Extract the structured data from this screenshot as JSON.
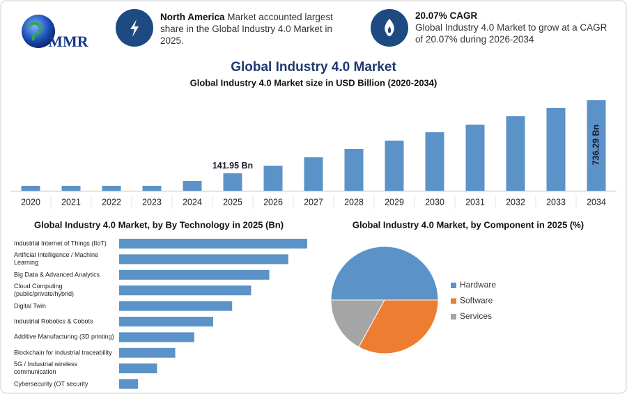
{
  "header": {
    "logo": "MMR",
    "highlights": [
      {
        "bold": "North America",
        "text": "Market accounted largest share in the Global Industry 4.0 Market in 2025."
      },
      {
        "bold": "20.07% CAGR",
        "text": "Global Industry 4.0 Market to grow at a CAGR of 20.07% during 2026-2034"
      }
    ]
  },
  "title": "Global Industry 4.0 Market",
  "chart_data": [
    {
      "type": "bar",
      "title": "Global Industry 4.0 Market size in USD Billion (2020-2034)",
      "categories": [
        "2020",
        "2021",
        "2022",
        "2023",
        "2024",
        "2025",
        "2026",
        "2027",
        "2028",
        "2029",
        "2030",
        "2031",
        "2032",
        "2033",
        "2034"
      ],
      "values": [
        40,
        40,
        40,
        40,
        79,
        141.95,
        204,
        272,
        340,
        408,
        476,
        538,
        606,
        674,
        736.29
      ],
      "value_labels": [
        null,
        null,
        null,
        null,
        null,
        "141.95 Bn",
        null,
        null,
        null,
        null,
        null,
        null,
        null,
        null,
        "736.29 Bn"
      ],
      "color": "#5b93c9"
    },
    {
      "type": "hbar",
      "title": "Global Industry 4.0 Market, by By Technology in 2025 (Bn)",
      "categories": [
        "Industrial Internet of Things (IIoT)",
        "Artificial Intelligence / Machine Learning",
        "Big Data & Advanced Analytics",
        "Cloud Computing (public/private/hybrid)",
        "Digital Twin",
        "Industrial Robotics & Cobots",
        "Additive Manufacturing (3D printing)",
        "Blockchain for industrial traceability",
        "5G / Industrial wireless communication",
        "Cybersecurity (OT security"
      ],
      "values": [
        25.8,
        23.2,
        20.6,
        18.1,
        15.5,
        12.9,
        10.3,
        7.7,
        5.2,
        2.6
      ],
      "color": "#5b93c9"
    },
    {
      "type": "pie",
      "title": "Global Industry 4.0 Market, by Component in 2025 (%)",
      "categories": [
        "Hardware",
        "Software",
        "Services"
      ],
      "values": [
        50,
        33,
        17
      ],
      "colors": [
        "#5b93c9",
        "#ed7d31",
        "#a5a5a5"
      ]
    }
  ]
}
